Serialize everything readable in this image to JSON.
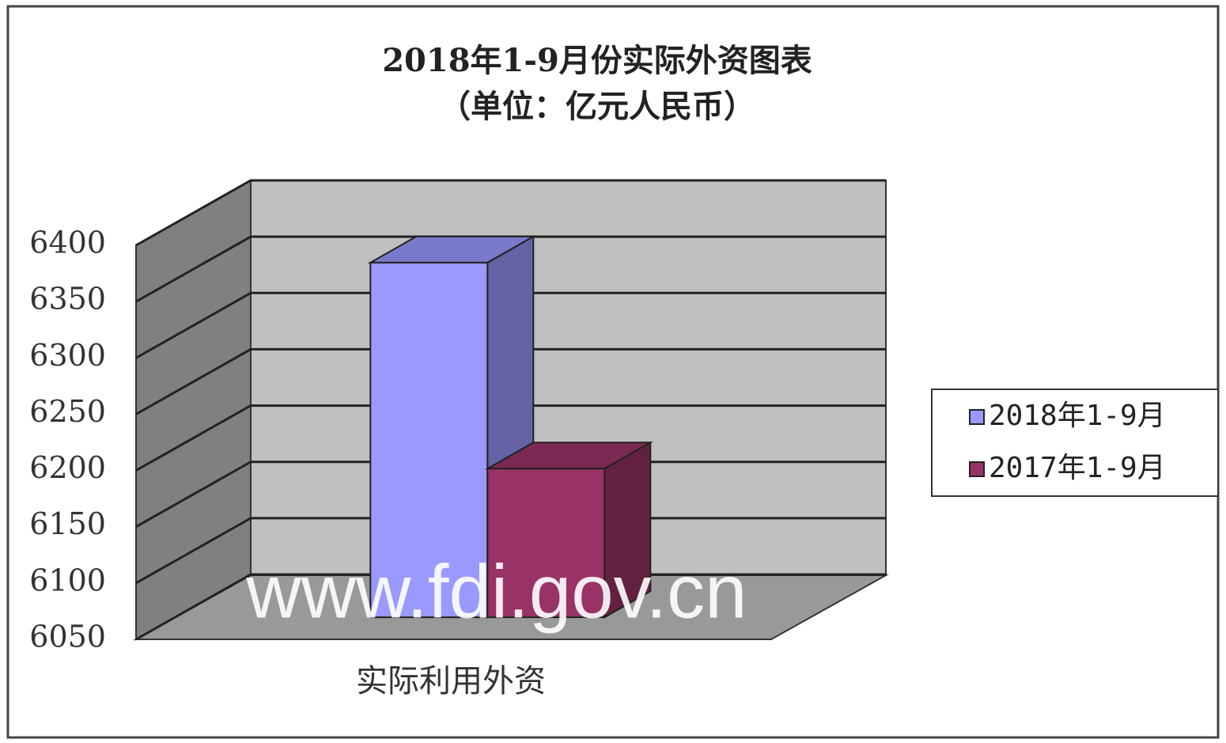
{
  "chart_data": {
    "type": "bar3d",
    "title": "2018年1-9月份实际外资图表",
    "subtitle": "（单位：亿元人民币）",
    "categories": [
      "实际利用外资"
    ],
    "series": [
      {
        "name": "2018年1-9月",
        "color": "#9999ff",
        "values": [
          6365
        ]
      },
      {
        "name": "2017年1-9月",
        "color": "#993366",
        "values": [
          6182
        ]
      }
    ],
    "ylim": [
      6050,
      6400
    ],
    "yticks": [
      6050,
      6100,
      6150,
      6200,
      6250,
      6300,
      6350,
      6400
    ],
    "grid": true,
    "legend": "right",
    "watermark": "www.fdi.gov.cn"
  }
}
